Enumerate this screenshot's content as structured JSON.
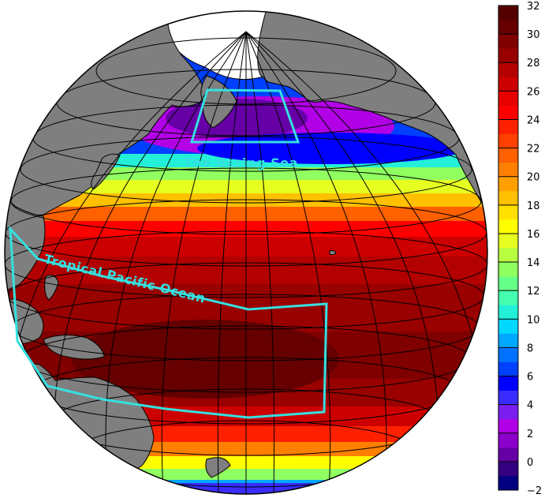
{
  "map": {
    "regions": [
      {
        "id": "bering",
        "label": "The Bering Sea"
      },
      {
        "id": "tropical",
        "label": "Tropical Pacific Ocean"
      }
    ],
    "colors": {
      "land": "#7f7f7f",
      "ice": "#ffffff",
      "graticule": "#000000",
      "region_outline": "#35e0e0"
    }
  },
  "colorbar": {
    "ticks": [
      "32",
      "30",
      "28",
      "26",
      "24",
      "22",
      "20",
      "18",
      "16",
      "14",
      "12",
      "10",
      "8",
      "6",
      "4",
      "2",
      "0",
      "−2"
    ],
    "colors": [
      "#000080",
      "#33007f",
      "#6600a6",
      "#8c00cc",
      "#b200e6",
      "#7a1ff0",
      "#3a2cff",
      "#0000ff",
      "#0040ff",
      "#0072ff",
      "#00a8ff",
      "#00d8ff",
      "#22f0d8",
      "#44ffb0",
      "#66ff88",
      "#90ff60",
      "#b8ff40",
      "#e6ff20",
      "#ffff00",
      "#ffe000",
      "#ffc000",
      "#ffa000",
      "#ff8000",
      "#ff6000",
      "#ff4000",
      "#ff2000",
      "#ff0000",
      "#e60000",
      "#cc0000",
      "#b30000",
      "#990000",
      "#800000",
      "#660000",
      "#550000"
    ]
  }
}
